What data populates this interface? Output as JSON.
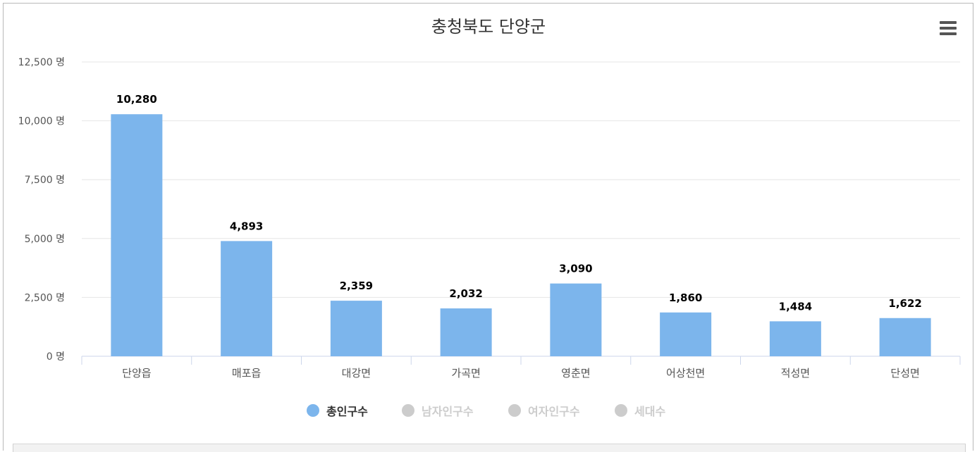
{
  "chart_data": {
    "type": "bar",
    "title": "충청북도 단양군",
    "categories": [
      "단양읍",
      "매포읍",
      "대강면",
      "가곡면",
      "영춘면",
      "어상천면",
      "적성면",
      "단성면"
    ],
    "series": [
      {
        "name": "총인구수",
        "values": [
          10280,
          4893,
          2359,
          2032,
          3090,
          1860,
          1484,
          1622
        ],
        "color": "#7cb5ec",
        "visible": true
      }
    ],
    "data_labels": [
      "10,280",
      "4,893",
      "2,359",
      "2,032",
      "3,090",
      "1,860",
      "1,484",
      "1,622"
    ],
    "y_ticks": [
      0,
      2500,
      5000,
      7500,
      10000,
      12500
    ],
    "y_tick_labels": [
      "0 명",
      "2,500 명",
      "5,000 명",
      "7,500 명",
      "10,000 명",
      "12,500 명"
    ],
    "ylim": [
      0,
      12500
    ],
    "grid": true,
    "legend_placement": "bottom-center",
    "xlabel": "",
    "ylabel": ""
  },
  "legend": [
    {
      "label": "총인구수",
      "active": true,
      "color": "#7cb5ec"
    },
    {
      "label": "남자인구수",
      "active": false,
      "color": "#cccccc"
    },
    {
      "label": "여자인구수",
      "active": false,
      "color": "#cccccc"
    },
    {
      "label": "세대수",
      "active": false,
      "color": "#cccccc"
    }
  ],
  "menu": {
    "icon": "hamburger-menu-icon"
  }
}
